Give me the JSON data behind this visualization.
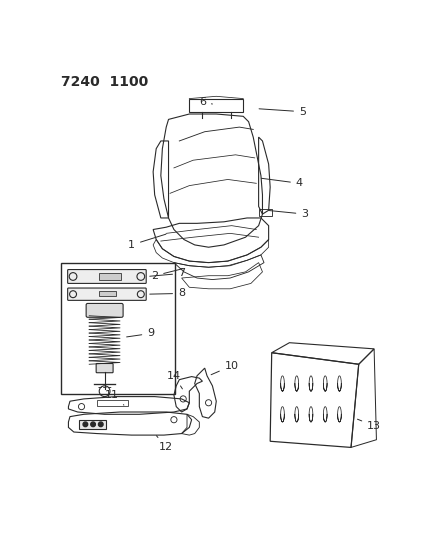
{
  "title": "7240 1100",
  "background_color": "#ffffff",
  "line_color": "#2a2a2a",
  "label_color": "#2a2a2a",
  "title_fontsize": 10,
  "label_fontsize": 8,
  "figsize": [
    4.28,
    5.33
  ],
  "dpi": 100
}
